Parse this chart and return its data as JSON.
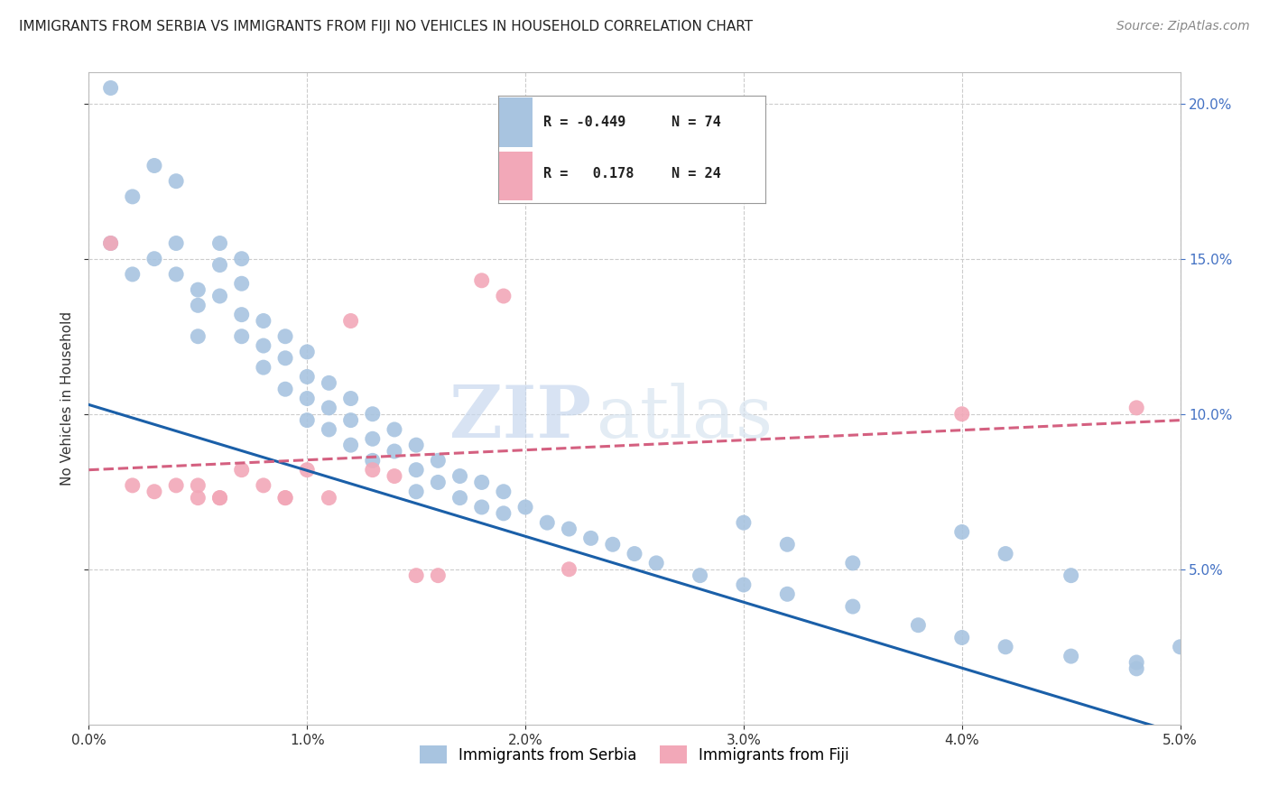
{
  "title": "IMMIGRANTS FROM SERBIA VS IMMIGRANTS FROM FIJI NO VEHICLES IN HOUSEHOLD CORRELATION CHART",
  "source": "Source: ZipAtlas.com",
  "ylabel": "No Vehicles in Household",
  "serbia_color": "#a8c4e0",
  "fiji_color": "#f2a8b8",
  "serbia_line_color": "#1a5fa8",
  "fiji_line_color": "#d46080",
  "background_color": "#ffffff",
  "grid_color": "#cccccc",
  "watermark1": "ZIP",
  "watermark2": "atlas",
  "serbia_x": [
    0.001,
    0.001,
    0.002,
    0.002,
    0.003,
    0.003,
    0.004,
    0.004,
    0.004,
    0.005,
    0.005,
    0.005,
    0.006,
    0.006,
    0.006,
    0.007,
    0.007,
    0.007,
    0.007,
    0.008,
    0.008,
    0.008,
    0.009,
    0.009,
    0.009,
    0.01,
    0.01,
    0.01,
    0.01,
    0.011,
    0.011,
    0.011,
    0.012,
    0.012,
    0.012,
    0.013,
    0.013,
    0.013,
    0.014,
    0.014,
    0.015,
    0.015,
    0.015,
    0.016,
    0.016,
    0.017,
    0.017,
    0.018,
    0.018,
    0.019,
    0.019,
    0.02,
    0.021,
    0.022,
    0.023,
    0.024,
    0.025,
    0.026,
    0.028,
    0.03,
    0.032,
    0.035,
    0.038,
    0.04,
    0.042,
    0.045,
    0.048,
    0.03,
    0.032,
    0.035,
    0.04,
    0.042,
    0.045,
    0.048,
    0.05
  ],
  "serbia_y": [
    0.205,
    0.155,
    0.17,
    0.145,
    0.18,
    0.15,
    0.175,
    0.155,
    0.145,
    0.14,
    0.135,
    0.125,
    0.155,
    0.148,
    0.138,
    0.15,
    0.142,
    0.132,
    0.125,
    0.13,
    0.122,
    0.115,
    0.125,
    0.118,
    0.108,
    0.12,
    0.112,
    0.105,
    0.098,
    0.11,
    0.102,
    0.095,
    0.105,
    0.098,
    0.09,
    0.1,
    0.092,
    0.085,
    0.095,
    0.088,
    0.09,
    0.082,
    0.075,
    0.085,
    0.078,
    0.08,
    0.073,
    0.078,
    0.07,
    0.075,
    0.068,
    0.07,
    0.065,
    0.063,
    0.06,
    0.058,
    0.055,
    0.052,
    0.048,
    0.045,
    0.042,
    0.038,
    0.032,
    0.028,
    0.025,
    0.022,
    0.018,
    0.065,
    0.058,
    0.052,
    0.062,
    0.055,
    0.048,
    0.02,
    0.025
  ],
  "fiji_x": [
    0.001,
    0.002,
    0.003,
    0.004,
    0.005,
    0.005,
    0.006,
    0.006,
    0.007,
    0.008,
    0.009,
    0.009,
    0.01,
    0.011,
    0.012,
    0.013,
    0.014,
    0.015,
    0.016,
    0.018,
    0.019,
    0.022,
    0.04,
    0.048
  ],
  "fiji_y": [
    0.155,
    0.077,
    0.075,
    0.077,
    0.077,
    0.073,
    0.073,
    0.073,
    0.082,
    0.077,
    0.073,
    0.073,
    0.082,
    0.073,
    0.13,
    0.082,
    0.08,
    0.048,
    0.048,
    0.143,
    0.138,
    0.05,
    0.1,
    0.102
  ],
  "xlim": [
    0.0,
    0.05
  ],
  "ylim": [
    0.0,
    0.21
  ],
  "serbia_trend_x": [
    0.0,
    0.05
  ],
  "serbia_trend_y": [
    0.103,
    -0.003
  ],
  "fiji_trend_x": [
    0.0,
    0.05
  ],
  "fiji_trend_y": [
    0.082,
    0.098
  ],
  "yticks": [
    0.05,
    0.1,
    0.15,
    0.2
  ],
  "xticks": [
    0.0,
    0.01,
    0.02,
    0.03,
    0.04,
    0.05
  ],
  "right_tick_color": "#4472c4",
  "title_fontsize": 11,
  "source_fontsize": 10,
  "axis_label_fontsize": 11,
  "tick_fontsize": 11
}
